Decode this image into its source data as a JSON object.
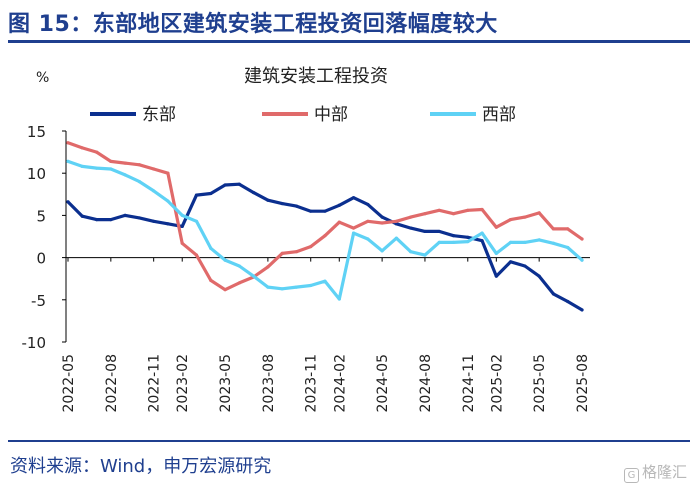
{
  "figure_title": "图 15：东部地区建筑安装工程投资回落幅度较大",
  "source": "资料来源：Wind，申万宏源研究",
  "watermark": "格隆汇",
  "chart_data": {
    "type": "line",
    "title": "建筑安装工程投资",
    "ylabel": "%",
    "xlabel": "",
    "ylim": [
      -10,
      15
    ],
    "yticks": [
      -10,
      -5,
      0,
      5,
      10,
      15
    ],
    "grid": false,
    "legend_position": "top",
    "x": [
      "2022-05",
      "2022-06",
      "2022-07",
      "2022-08",
      "2022-09",
      "2022-10",
      "2022-11",
      "2022-12",
      "2023-02",
      "2023-03",
      "2023-04",
      "2023-05",
      "2023-06",
      "2023-07",
      "2023-08",
      "2023-09",
      "2023-10",
      "2023-11",
      "2023-12",
      "2024-02",
      "2024-03",
      "2024-04",
      "2024-05",
      "2024-06",
      "2024-07",
      "2024-08",
      "2024-09",
      "2024-10",
      "2024-11",
      "2024-12",
      "2025-02",
      "2025-03",
      "2025-04",
      "2025-05",
      "2025-06",
      "2025-07",
      "2025-08"
    ],
    "xtick_labels": [
      "2022-05",
      "2022-08",
      "2022-11",
      "2023-02",
      "2023-05",
      "2023-08",
      "2023-11",
      "2024-02",
      "2024-05",
      "2024-08",
      "2024-11",
      "2025-02",
      "2025-05",
      "2025-08"
    ],
    "series": [
      {
        "name": "东部",
        "color": "#0b2f8f",
        "values": [
          6.6,
          4.9,
          4.5,
          4.5,
          5.0,
          4.7,
          4.3,
          4.0,
          3.7,
          7.4,
          7.6,
          8.6,
          8.7,
          7.7,
          6.8,
          6.4,
          6.1,
          5.5,
          5.5,
          6.2,
          7.1,
          6.3,
          4.8,
          4.0,
          3.5,
          3.1,
          3.1,
          2.6,
          2.4,
          2.0,
          -2.2,
          -0.5,
          -1.0,
          -2.2,
          -4.3,
          -5.2,
          -6.2
        ]
      },
      {
        "name": "中部",
        "color": "#e06a6a",
        "values": [
          13.6,
          13.0,
          12.5,
          11.4,
          11.2,
          11.0,
          10.5,
          10.0,
          1.7,
          0.3,
          -2.7,
          -3.8,
          -3.0,
          -2.3,
          -1.1,
          0.5,
          0.7,
          1.3,
          2.6,
          4.2,
          3.5,
          4.3,
          4.1,
          4.3,
          4.8,
          5.2,
          5.6,
          5.2,
          5.6,
          5.7,
          3.6,
          4.5,
          4.8,
          5.3,
          3.4,
          3.4,
          2.2
        ]
      },
      {
        "name": "西部",
        "color": "#5fd2f5",
        "values": [
          11.4,
          10.8,
          10.6,
          10.5,
          9.8,
          9.0,
          7.9,
          6.7,
          5.0,
          4.3,
          1.1,
          -0.3,
          -1.0,
          -2.2,
          -3.5,
          -3.7,
          -3.5,
          -3.3,
          -2.8,
          -4.9,
          2.9,
          2.2,
          0.8,
          2.3,
          0.7,
          0.3,
          1.8,
          1.8,
          1.9,
          2.9,
          0.5,
          1.8,
          1.8,
          2.1,
          1.7,
          1.2,
          -0.3
        ]
      }
    ]
  }
}
